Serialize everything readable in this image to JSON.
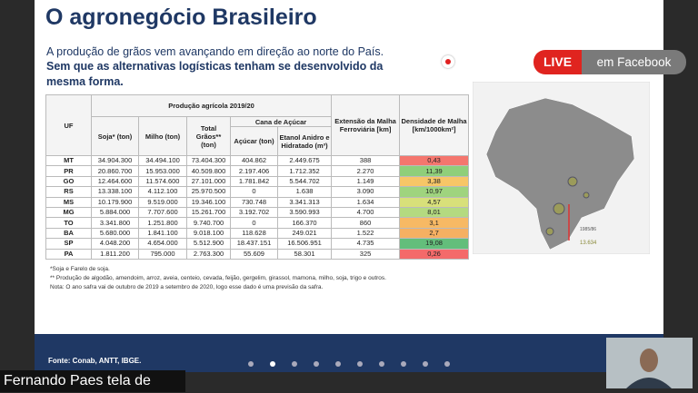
{
  "slide": {
    "title": "O agronegócio Brasileiro",
    "subtitle": [
      "A produção de grãos vem avançando em direção ao norte do País.",
      "Sem que as alternativas logísticas tenham se desenvolvido da",
      "mesma forma."
    ],
    "table": {
      "headers": {
        "uf": "UF",
        "group": "Produção agrícola 2019/20",
        "soja": "Soja* (ton)",
        "milho": "Milho (ton)",
        "total": "Total Grãos** (ton)",
        "cana": "Cana de Açúcar",
        "acucar": "Açúcar (ton)",
        "etanol": "Etanol Anidro e Hidratado (m³)",
        "ferrovia": "Extensão da Malha Ferroviária [km]",
        "densidade": "Densidade de Malha [km/1000km²]"
      },
      "rows": [
        [
          "MT",
          "34.904.300",
          "34.494.100",
          "73.404.300",
          "404.862",
          "2.449.675",
          "388",
          "0,43"
        ],
        [
          "PR",
          "20.860.700",
          "15.953.000",
          "40.509.800",
          "2.197.406",
          "1.712.352",
          "2.270",
          "11,39"
        ],
        [
          "GO",
          "12.464.600",
          "11.574.600",
          "27.101.000",
          "1.781.842",
          "5.544.702",
          "1.149",
          "3,38"
        ],
        [
          "RS",
          "13.338.100",
          "4.112.100",
          "25.970.500",
          "0",
          "1.638",
          "3.090",
          "10,97"
        ],
        [
          "MS",
          "10.179.900",
          "9.519.000",
          "19.346.100",
          "730.748",
          "3.341.313",
          "1.634",
          "4,57"
        ],
        [
          "MG",
          "5.884.000",
          "7.707.600",
          "15.261.700",
          "3.192.702",
          "3.590.993",
          "4.700",
          "8,01"
        ],
        [
          "TO",
          "3.341.800",
          "1.251.800",
          "9.740.700",
          "0",
          "166.370",
          "860",
          "3,1"
        ],
        [
          "BA",
          "5.680.000",
          "1.841.100",
          "9.018.100",
          "118.628",
          "249.021",
          "1.522",
          "2,7"
        ],
        [
          "SP",
          "4.048.200",
          "4.654.000",
          "5.512.900",
          "18.437.151",
          "16.506.951",
          "4.735",
          "19,08"
        ],
        [
          "PA",
          "1.811.200",
          "795.000",
          "2.763.300",
          "55.609",
          "58.301",
          "325",
          "0,26"
        ]
      ],
      "density_colors": [
        "#f4766e",
        "#8fcf7a",
        "#f7c667",
        "#9fd47e",
        "#d8e07a",
        "#b4da80",
        "#f7b964",
        "#f5b062",
        "#63be7b",
        "#f46a6a"
      ]
    },
    "footnotes": [
      "*Soja e Farelo de soja.",
      "** Produção de algodão, amendoim, arroz, aveia, centeio, cevada, feijão, gergelim, girassol, mamona, milho, soja, trigo e outros.",
      "Nota: O ano safra vai de outubro de 2019 a setembro de 2020, logo esse dado é uma previsão da safra."
    ],
    "source": "Fonte: Conab, ANTT, IBGE.",
    "map_legend": [
      "1985/86",
      "13.634"
    ]
  },
  "overlay": {
    "live": "LIVE",
    "platform": "em Facebook",
    "presenter": "Fernando Paes tela de"
  }
}
